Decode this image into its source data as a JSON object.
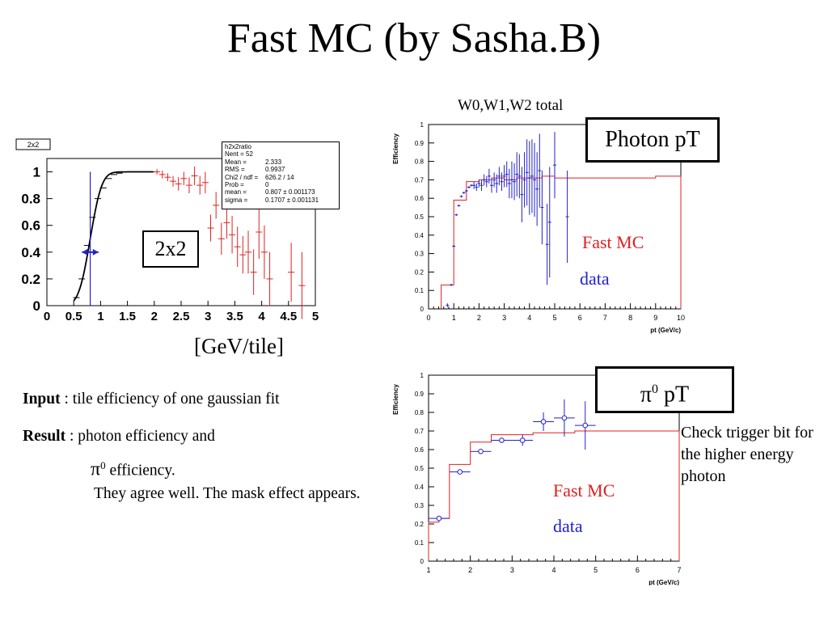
{
  "slide": {
    "title": "Fast MC (by Sasha.B)",
    "unit_label": "[GeV/tile]",
    "left_box_label": "2x2",
    "photon_title": "W0,W1,W2 total",
    "photon_box": "Photon pT",
    "pi_box_symbol": "π",
    "pi_box_sup": "0",
    "pi_box_rest": " pT",
    "fastmc_label": "Fast MC",
    "data_label": "data",
    "note": "Check trigger bit for the higher energy photon",
    "input_bold": "Input",
    "input_rest": " : tile efficiency of one gaussian fit",
    "result_bold": "Result",
    "result_rest": " : photon efficiency and",
    "result_pi": "π",
    "result_pi_sup": "0",
    "result_pi_rest": " efficiency.",
    "result_line3": "They agree well. The mask effect appears."
  },
  "stats": {
    "title": "h2x2ratio",
    "rows": [
      {
        "k": "Nent = 52",
        "v": ""
      },
      {
        "k": "Mean  =",
        "v": "2.333"
      },
      {
        "k": "RMS   =",
        "v": "0.9937"
      },
      {
        "k": "Chi2 / ndf =",
        "v": "626.2 / 14"
      },
      {
        "k": "Prob  =",
        "v": "0"
      },
      {
        "k": "mean  =",
        "v": "0.807 ± 0.001173"
      },
      {
        "k": "sigma  =",
        "v": "0.1707 ± 0.001131"
      }
    ]
  },
  "chart_data": [
    {
      "type": "scatter",
      "id": "tile",
      "hist_title": "2x2",
      "xlabel": "",
      "ylabel": "",
      "xlim": [
        0,
        5
      ],
      "ylim": [
        0,
        1.1
      ],
      "xticks": [
        "0",
        "0.5",
        "1",
        "1.5",
        "2",
        "2.5",
        "3",
        "3.5",
        "4",
        "4.5",
        "5"
      ],
      "yticks": [
        "0",
        "0.2",
        "0.4",
        "0.6",
        "0.8",
        "1"
      ],
      "fit": {
        "function": "gaussian CDF",
        "mean": 0.807,
        "sigma": 0.1707
      },
      "series": [
        {
          "color": "#000000",
          "points": [
            [
              0.55,
              0.06,
              0
            ],
            [
              0.65,
              0.2,
              0
            ],
            [
              0.75,
              0.45,
              0
            ],
            [
              0.85,
              0.66,
              0
            ],
            [
              0.95,
              0.8,
              0
            ],
            [
              1.05,
              0.88,
              0
            ],
            [
              1.15,
              0.95,
              0
            ],
            [
              1.25,
              0.98,
              0
            ],
            [
              1.35,
              0.99,
              0
            ],
            [
              1.45,
              1.0,
              0
            ],
            [
              1.55,
              1.0,
              0
            ],
            [
              1.65,
              1.0,
              0
            ],
            [
              1.75,
              1.0,
              0
            ],
            [
              1.85,
              1.0,
              0
            ],
            [
              1.95,
              1.0,
              0
            ]
          ]
        },
        {
          "color": "#e02020",
          "points": [
            [
              2.05,
              1.0,
              0.02
            ],
            [
              2.15,
              0.98,
              0.03
            ],
            [
              2.25,
              0.96,
              0.03
            ],
            [
              2.35,
              0.93,
              0.04
            ],
            [
              2.45,
              0.91,
              0.05
            ],
            [
              2.55,
              0.95,
              0.05
            ],
            [
              2.65,
              0.9,
              0.06
            ],
            [
              2.75,
              0.97,
              0.07
            ],
            [
              2.85,
              0.9,
              0.07
            ],
            [
              2.95,
              0.92,
              0.08
            ],
            [
              3.05,
              0.58,
              0.1
            ],
            [
              3.15,
              0.75,
              0.1
            ],
            [
              3.25,
              0.5,
              0.12
            ],
            [
              3.35,
              0.62,
              0.12
            ],
            [
              3.45,
              0.53,
              0.14
            ],
            [
              3.55,
              0.44,
              0.15
            ],
            [
              3.65,
              0.38,
              0.14
            ],
            [
              3.75,
              0.4,
              0.16
            ],
            [
              3.85,
              0.25,
              0.17
            ],
            [
              3.95,
              0.55,
              0.2
            ],
            [
              4.05,
              0.4,
              0.2
            ],
            [
              4.15,
              0.2,
              0.2
            ],
            [
              4.55,
              0.25,
              0.22
            ],
            [
              4.75,
              0.15,
              0.25
            ]
          ]
        }
      ]
    },
    {
      "type": "line",
      "id": "photon",
      "title": "W0,W1,W2 total",
      "xlabel": "pt (GeV/c)",
      "ylabel": "Efficiency",
      "xlim": [
        0,
        10
      ],
      "ylim": [
        0,
        1
      ],
      "xticks": [
        "0",
        "1",
        "2",
        "3",
        "4",
        "5",
        "6",
        "7",
        "8",
        "9",
        "10"
      ],
      "yticks": [
        "0",
        "0.1",
        "0.2",
        "0.3",
        "0.4",
        "0.5",
        "0.6",
        "0.7",
        "0.8",
        "0.9",
        "1"
      ],
      "series": [
        {
          "name": "Fast MC",
          "color": "#e02020",
          "edges": [
            0.5,
            1,
            1.5,
            2,
            2.5,
            3,
            3.5,
            4,
            4.5,
            5,
            6,
            7,
            8,
            9,
            10
          ],
          "values": [
            0.13,
            0.59,
            0.69,
            0.7,
            0.71,
            0.7,
            0.71,
            0.71,
            0.72,
            0.71,
            0.71,
            0.71,
            0.71,
            0.72
          ]
        },
        {
          "name": "data",
          "color": "#2222cc",
          "points": [
            [
              0.75,
              0.02,
              0.01
            ],
            [
              0.9,
              0.13,
              0
            ],
            [
              1.0,
              0.34,
              0
            ],
            [
              1.1,
              0.51,
              0
            ],
            [
              1.2,
              0.56,
              0
            ],
            [
              1.3,
              0.61,
              0
            ],
            [
              1.4,
              0.63,
              0
            ],
            [
              1.5,
              0.64,
              0
            ],
            [
              1.6,
              0.66,
              0
            ],
            [
              1.7,
              0.67,
              0
            ],
            [
              1.8,
              0.67,
              0.02
            ],
            [
              1.9,
              0.66,
              0.02
            ],
            [
              2.0,
              0.68,
              0.02
            ],
            [
              2.1,
              0.67,
              0.03
            ],
            [
              2.2,
              0.7,
              0.03
            ],
            [
              2.3,
              0.69,
              0.03
            ],
            [
              2.4,
              0.72,
              0.04
            ],
            [
              2.5,
              0.67,
              0.04
            ],
            [
              2.6,
              0.7,
              0.04
            ],
            [
              2.7,
              0.68,
              0.05
            ],
            [
              2.8,
              0.72,
              0.05
            ],
            [
              2.9,
              0.69,
              0.05
            ],
            [
              3.0,
              0.72,
              0.06
            ],
            [
              3.1,
              0.73,
              0.07
            ],
            [
              3.2,
              0.68,
              0.08
            ],
            [
              3.3,
              0.7,
              0.1
            ],
            [
              3.4,
              0.69,
              0.1
            ],
            [
              3.5,
              0.73,
              0.12
            ],
            [
              3.6,
              0.72,
              0.12
            ],
            [
              3.7,
              0.62,
              0.15
            ],
            [
              3.8,
              0.7,
              0.15
            ],
            [
              3.9,
              0.74,
              0.18
            ],
            [
              4.0,
              0.71,
              0.2
            ],
            [
              4.1,
              0.72,
              0.2
            ],
            [
              4.2,
              0.7,
              0.2
            ],
            [
              4.3,
              0.65,
              0.2
            ],
            [
              4.4,
              0.75,
              0.2
            ],
            [
              4.5,
              0.55,
              0.2
            ],
            [
              4.7,
              0.35,
              0.22
            ],
            [
              4.8,
              0.47,
              0.3
            ],
            [
              5.0,
              0.78,
              0.18
            ],
            [
              5.5,
              0.5,
              0.25
            ]
          ]
        }
      ]
    },
    {
      "type": "line",
      "id": "pi0",
      "xlabel": "pt (GeV/c)",
      "ylabel": "Efficiency",
      "xlim": [
        1,
        7
      ],
      "ylim": [
        0,
        1
      ],
      "xticks": [
        "1",
        "2",
        "3",
        "4",
        "5",
        "6",
        "7"
      ],
      "yticks": [
        "0",
        "0.1",
        "0.2",
        "0.3",
        "0.4",
        "0.5",
        "0.6",
        "0.7",
        "0.8",
        "0.9",
        "1"
      ],
      "series": [
        {
          "name": "Fast MC",
          "color": "#e02020",
          "edges": [
            1,
            1.25,
            1.5,
            1.75,
            2,
            2.5,
            3,
            3.5,
            4,
            4.5,
            5,
            7
          ],
          "values": [
            0.21,
            0.23,
            0.52,
            0.52,
            0.64,
            0.68,
            0.68,
            0.69,
            0.69,
            0.7,
            0.7
          ]
        },
        {
          "name": "data",
          "color": "#2222cc",
          "points": [
            [
              1.25,
              0.23,
              0.25,
              0.01
            ],
            [
              1.75,
              0.48,
              0.25,
              0.01
            ],
            [
              2.25,
              0.59,
              0.25,
              0.01
            ],
            [
              2.75,
              0.65,
              0.25,
              0.02
            ],
            [
              3.25,
              0.65,
              0.25,
              0.03
            ],
            [
              3.75,
              0.75,
              0.25,
              0.05
            ],
            [
              4.25,
              0.77,
              0.25,
              0.1
            ],
            [
              4.75,
              0.73,
              0.25,
              0.13
            ]
          ]
        }
      ]
    }
  ]
}
